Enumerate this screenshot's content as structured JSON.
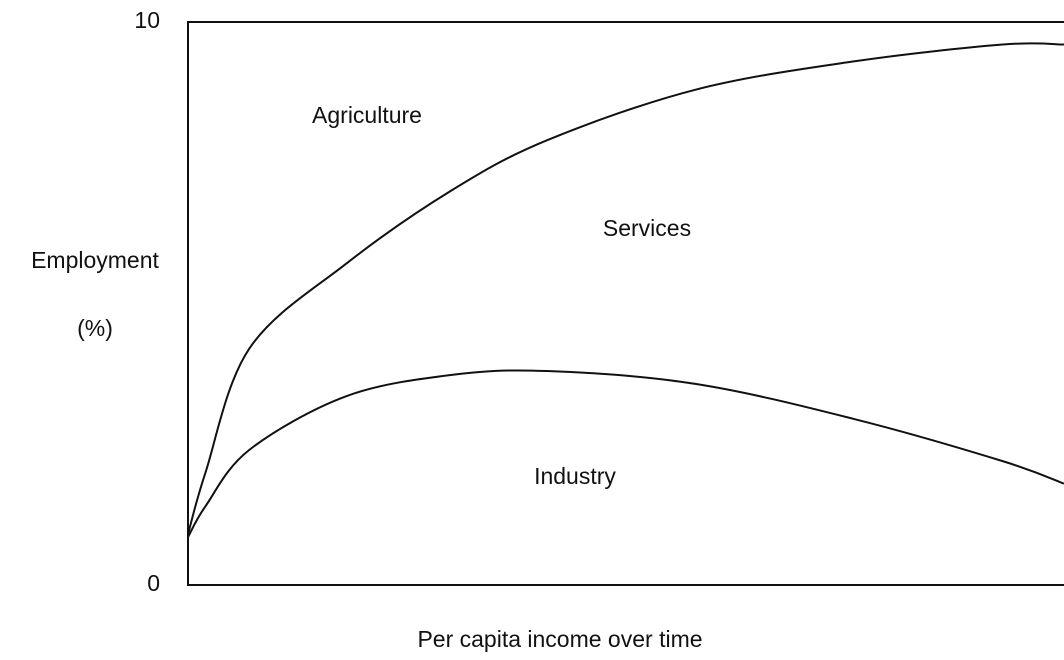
{
  "chart_data": {
    "type": "line",
    "xlabel": "Per capita income over time",
    "ylabel": [
      "Employment",
      "(%)"
    ],
    "x": [
      0,
      0.2,
      0.7,
      1.8,
      3,
      4.1,
      5.8,
      7.6,
      9.3,
      10
    ],
    "xlim": [
      0,
      10
    ],
    "ylim": [
      0,
      10
    ],
    "yticks": [
      0,
      10
    ],
    "series": [
      {
        "color": "#111111",
        "values": [
          0.9,
          2.0,
          4.2,
          5.7,
          7.0,
          7.9,
          8.8,
          9.3,
          9.6,
          9.6
        ]
      },
      {
        "color": "#111111",
        "values": [
          0.85,
          1.4,
          2.4,
          3.35,
          3.73,
          3.8,
          3.57,
          2.95,
          2.2,
          1.8
        ]
      }
    ],
    "annotations": [
      "Agriculture",
      "Services",
      "Industry"
    ]
  }
}
